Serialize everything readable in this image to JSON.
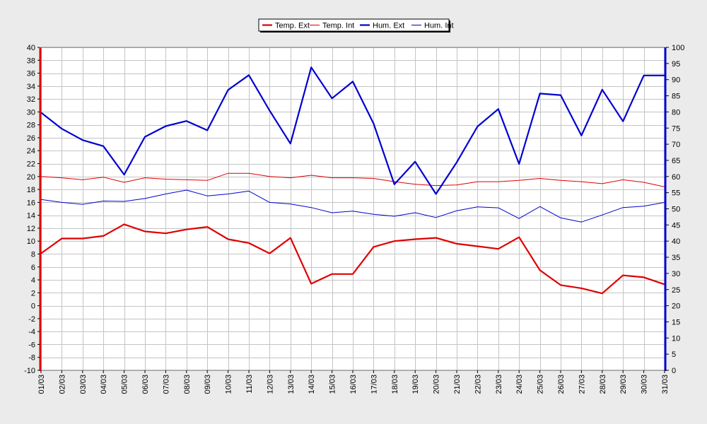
{
  "chart_data": {
    "type": "line",
    "title": "",
    "xlabel": "",
    "ylabel": "",
    "y2label": "",
    "grid": true,
    "legend_position": "top-center",
    "categories": [
      "01/03",
      "02/03",
      "03/03",
      "04/03",
      "05/03",
      "06/03",
      "07/03",
      "08/03",
      "09/03",
      "10/03",
      "11/03",
      "12/03",
      "13/03",
      "14/03",
      "15/03",
      "16/03",
      "17/03",
      "18/03",
      "19/03",
      "20/03",
      "21/03",
      "22/03",
      "23/03",
      "24/03",
      "25/03",
      "26/03",
      "27/03",
      "28/03",
      "29/03",
      "30/03",
      "31/03"
    ],
    "y_left": {
      "ylim": [
        -10,
        40
      ],
      "ticks": [
        -10,
        -8,
        -6,
        -4,
        -2,
        0,
        2,
        4,
        6,
        8,
        10,
        12,
        14,
        16,
        18,
        20,
        22,
        24,
        26,
        28,
        30,
        32,
        34,
        36,
        38,
        40
      ]
    },
    "y_right": {
      "ylim": [
        0,
        100
      ],
      "ticks": [
        0,
        5,
        10,
        15,
        20,
        25,
        30,
        35,
        40,
        45,
        50,
        55,
        60,
        65,
        70,
        75,
        80,
        85,
        90,
        95,
        100
      ]
    },
    "series": [
      {
        "name": "Temp. Ext",
        "axis": "left",
        "color": "#e00000",
        "width": "thick",
        "values": [
          8.1,
          10.4,
          10.4,
          10.8,
          12.6,
          11.5,
          11.2,
          11.8,
          12.2,
          10.3,
          9.7,
          8.1,
          10.5,
          3.4,
          4.9,
          4.9,
          9.1,
          10.0,
          10.3,
          10.5,
          9.6,
          9.2,
          8.8,
          10.6,
          5.5,
          3.2,
          2.7,
          1.9,
          4.7,
          4.4,
          3.3
        ]
      },
      {
        "name": "Temp. Int",
        "axis": "left",
        "color": "#e00000",
        "width": "thin",
        "values": [
          20.0,
          19.8,
          19.5,
          19.9,
          19.1,
          19.8,
          19.6,
          19.5,
          19.4,
          20.5,
          20.5,
          20.0,
          19.8,
          20.2,
          19.8,
          19.8,
          19.7,
          19.2,
          18.8,
          18.6,
          18.7,
          19.2,
          19.2,
          19.4,
          19.7,
          19.4,
          19.2,
          18.9,
          19.5,
          19.1,
          18.4
        ]
      },
      {
        "name": "Hum. Ext",
        "axis": "right",
        "color": "#0000d0",
        "width": "thick",
        "values": [
          79.8,
          74.8,
          71.3,
          69.4,
          60.6,
          72.3,
          75.6,
          77.2,
          74.3,
          86.8,
          91.4,
          80.4,
          70.2,
          93.8,
          84.2,
          89.4,
          76.4,
          57.6,
          64.6,
          54.6,
          64.4,
          75.5,
          80.9,
          63.9,
          85.7,
          85.2,
          72.7,
          86.9,
          77.1,
          91.3,
          91.3
        ]
      },
      {
        "name": "Hum. Int",
        "axis": "right",
        "color": "#0000d0",
        "width": "thin",
        "values": [
          52.9,
          52.0,
          51.4,
          52.4,
          52.3,
          53.2,
          54.6,
          55.8,
          54.0,
          54.6,
          55.5,
          52.0,
          51.5,
          50.4,
          48.8,
          49.3,
          48.3,
          47.7,
          48.8,
          47.3,
          49.4,
          50.6,
          50.3,
          47.0,
          50.7,
          47.2,
          45.9,
          48.1,
          50.4,
          50.8,
          52.0
        ]
      }
    ]
  }
}
